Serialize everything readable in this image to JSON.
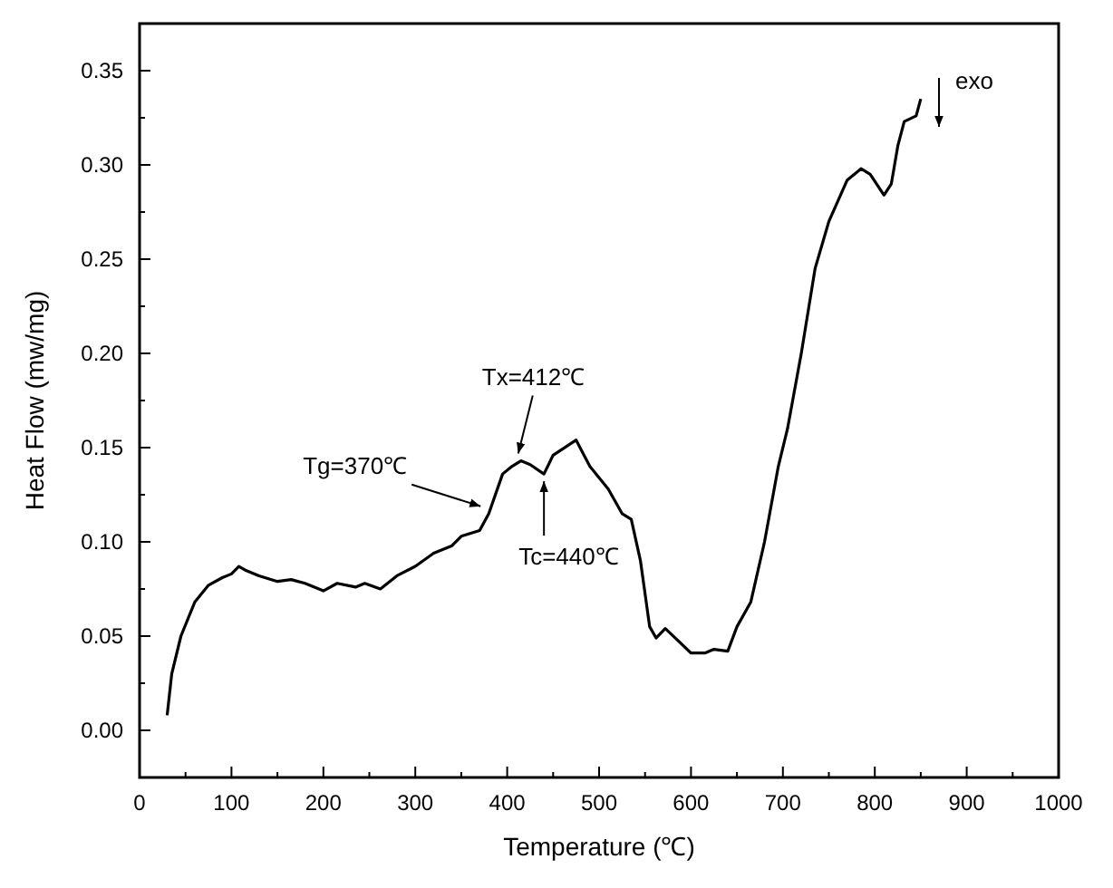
{
  "chart_data": {
    "type": "line",
    "xlabel": "Temperature (℃)",
    "ylabel": "Heat Flow (mw/mg)",
    "xlim": [
      0,
      1000
    ],
    "ylim": [
      -0.025,
      0.375
    ],
    "xticks": [
      0,
      100,
      200,
      300,
      400,
      500,
      600,
      700,
      800,
      900,
      1000
    ],
    "yticks": [
      {
        "value": 0,
        "label": "0.00"
      },
      0.05,
      {
        "value": 0.1,
        "label": "0.10"
      },
      0.15,
      {
        "value": 0.2,
        "label": "0.20"
      },
      0.25,
      {
        "value": 0.3,
        "label": "0.30"
      },
      0.35
    ],
    "series": [
      {
        "color": "#000000",
        "x": [
          30,
          35,
          45,
          60,
          75,
          90,
          100,
          108,
          115,
          130,
          150,
          165,
          180,
          200,
          215,
          235,
          245,
          262,
          280,
          300,
          320,
          340,
          350,
          370,
          380,
          395,
          405,
          415,
          425,
          440,
          450,
          475,
          490,
          510,
          525,
          535,
          545,
          555,
          562,
          572,
          585,
          600,
          615,
          625,
          640,
          650,
          665,
          680,
          695,
          705,
          720,
          735,
          750,
          770,
          785,
          795,
          810,
          818,
          825,
          832,
          845,
          850
        ],
        "values": [
          0.008,
          0.03,
          0.05,
          0.068,
          0.077,
          0.081,
          0.083,
          0.087,
          0.085,
          0.082,
          0.079,
          0.08,
          0.078,
          0.074,
          0.078,
          0.076,
          0.078,
          0.075,
          0.082,
          0.087,
          0.094,
          0.098,
          0.103,
          0.106,
          0.115,
          0.136,
          0.14,
          0.143,
          0.141,
          0.136,
          0.146,
          0.154,
          0.14,
          0.128,
          0.115,
          0.112,
          0.09,
          0.055,
          0.049,
          0.054,
          0.048,
          0.041,
          0.041,
          0.043,
          0.042,
          0.055,
          0.068,
          0.1,
          0.14,
          0.16,
          0.2,
          0.245,
          0.27,
          0.292,
          0.298,
          0.295,
          0.284,
          0.29,
          0.31,
          0.323,
          0.326,
          0.335
        ]
      }
    ],
    "annotations": [
      {
        "text": "Tg=370℃",
        "x": 371,
        "y": 0.115
      },
      {
        "text": "Tx=412℃",
        "x": 412,
        "y": 0.143
      },
      {
        "text": "Tc=440℃",
        "x": 440,
        "y": 0.136
      },
      "exo"
    ],
    "grid": false,
    "marker": "none",
    "line_style": "solid"
  }
}
